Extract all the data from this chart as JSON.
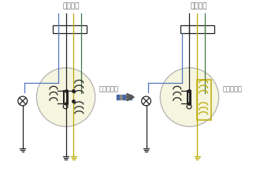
{
  "bg_color": "#ffffff",
  "coil_bg": "#f5f5e0",
  "wire_blue": "#5577bb",
  "wire_black": "#222222",
  "wire_yellow": "#bbaa00",
  "wire_green": "#447744",
  "circle_edge": "#aaaaaa",
  "label_color": "#666666",
  "title_left": "青黒黄緑",
  "title_right": "青黒黄緑",
  "magnet_left": "マグネット",
  "magnet_right": "マグネット",
  "arrow_color": "#555555",
  "figsize": [
    3.3,
    2.47
  ],
  "dpi": 100
}
